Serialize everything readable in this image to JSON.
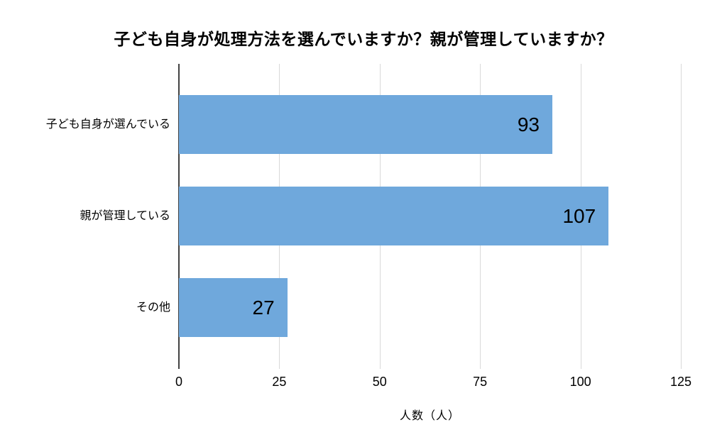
{
  "chart_data": {
    "type": "bar",
    "orientation": "horizontal",
    "title": "子ども自身が処理方法を選んでいますか？親が管理していますか？",
    "categories": [
      "子ども自身が選んでいる",
      "親が管理している",
      "その他"
    ],
    "values": [
      93,
      107,
      27
    ],
    "value_labels": [
      "93",
      "107",
      "27"
    ],
    "xlabel": "人数（人）",
    "xticks": [
      0,
      25,
      50,
      75,
      100,
      125
    ],
    "xlim": [
      0,
      125
    ],
    "grid": true,
    "legend": "none",
    "colors": {
      "bar": "#6FA8DC",
      "axis_line": "#424242",
      "gridline": "#D9D9D9",
      "text": "#000000",
      "background": "#FFFFFF"
    }
  }
}
